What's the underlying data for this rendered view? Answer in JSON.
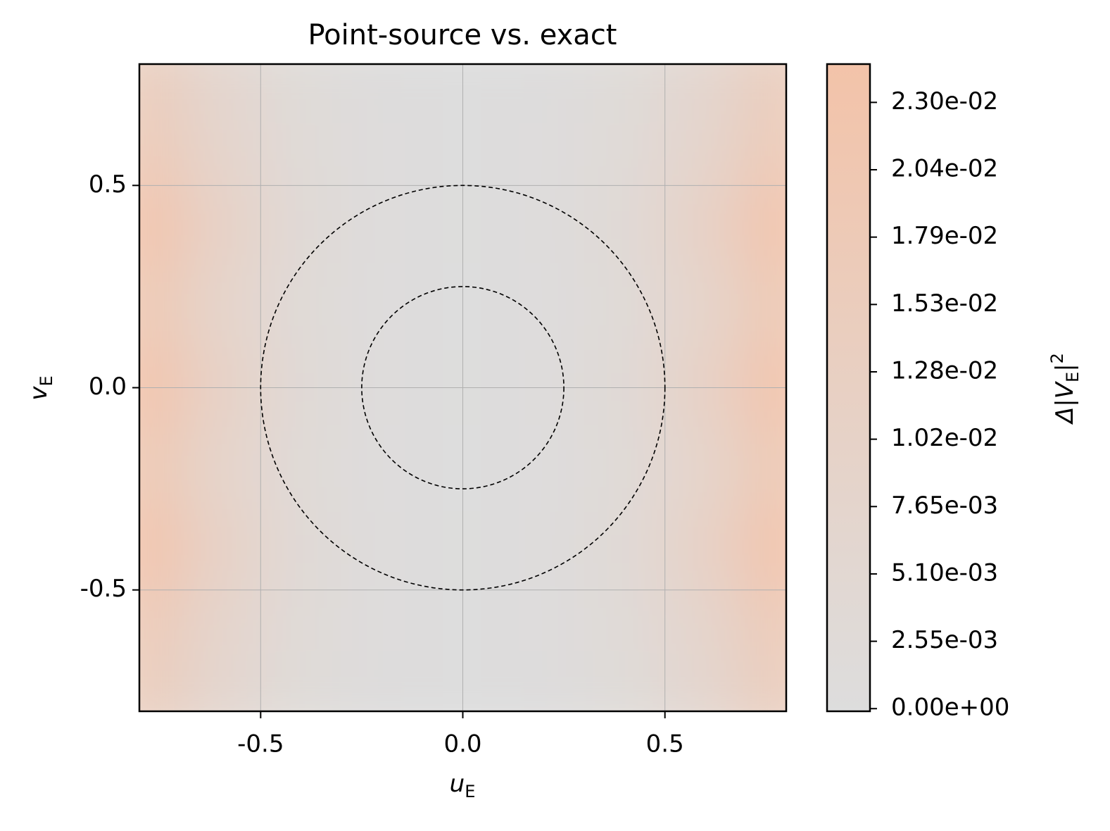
{
  "chart_data": {
    "type": "heatmap",
    "title": "Point-source vs. exact",
    "xlabel": {
      "main": "u",
      "sub": "E"
    },
    "ylabel": {
      "main": "v",
      "sub": "E"
    },
    "colorbar_label": {
      "pre": "Δ|",
      "main": "V",
      "sub": "E",
      "post": "|",
      "sup": "2"
    },
    "x": [
      -0.8,
      -0.6,
      -0.4,
      -0.2,
      0,
      0.2,
      0.4,
      0.6,
      0.8
    ],
    "y": [
      0.8,
      0.6,
      0.4,
      0.2,
      0,
      -0.2,
      -0.4,
      -0.6,
      -0.8
    ],
    "z": [
      [
        0.0144,
        0.0065,
        0.0022,
        0.0004,
        0,
        0.0004,
        0.0022,
        0.0065,
        0.0144
      ],
      [
        0.018,
        0.0081,
        0.0027,
        0.0005,
        0,
        0.0005,
        0.0027,
        0.0081,
        0.018
      ],
      [
        0.024,
        0.0108,
        0.0036,
        0.0007,
        0,
        0.0007,
        0.0036,
        0.0108,
        0.024
      ],
      [
        0.0192,
        0.0086,
        0.0029,
        0.0006,
        0,
        0.0006,
        0.0029,
        0.0086,
        0.0192
      ],
      [
        0.024,
        0.0108,
        0.0036,
        0.0007,
        0,
        0.0007,
        0.0036,
        0.0108,
        0.024
      ],
      [
        0.0192,
        0.0086,
        0.0029,
        0.0006,
        0,
        0.0006,
        0.0029,
        0.0086,
        0.0192
      ],
      [
        0.024,
        0.0108,
        0.0036,
        0.0007,
        0,
        0.0007,
        0.0036,
        0.0108,
        0.024
      ],
      [
        0.018,
        0.0081,
        0.0027,
        0.0005,
        0,
        0.0005,
        0.0027,
        0.0081,
        0.018
      ],
      [
        0.0144,
        0.0065,
        0.0022,
        0.0004,
        0,
        0.0004,
        0.0022,
        0.0065,
        0.0144
      ]
    ],
    "xlim": [
      -0.8,
      0.8
    ],
    "ylim": [
      -0.8,
      0.8
    ],
    "xticks": [
      -0.5,
      {
        "value": 0,
        "label": "0.0"
      },
      0.5
    ],
    "yticks": [
      -0.5,
      {
        "value": 0,
        "label": "0.0"
      },
      0.5
    ],
    "clim": [
      -0.0001,
      0.0244
    ],
    "cticks": [
      {
        "value": 0,
        "label": "0.00e+00"
      },
      {
        "value": 0.00255,
        "label": "2.55e-03"
      },
      {
        "value": 0.0051,
        "label": "5.10e-03"
      },
      {
        "value": 0.00765,
        "label": "7.65e-03"
      },
      {
        "value": 0.0102,
        "label": "1.02e-02"
      },
      {
        "value": 0.01275,
        "label": "1.28e-02"
      },
      {
        "value": 0.0153,
        "label": "1.53e-02"
      },
      {
        "value": 0.01785,
        "label": "1.79e-02"
      },
      {
        "value": 0.0204,
        "label": "2.04e-02"
      },
      {
        "value": 0.02295,
        "label": "2.30e-02"
      }
    ],
    "colormap": [
      "#dddddd",
      "#f3c3a9"
    ],
    "circles": [
      0.25,
      0.5
    ],
    "grid": true
  }
}
